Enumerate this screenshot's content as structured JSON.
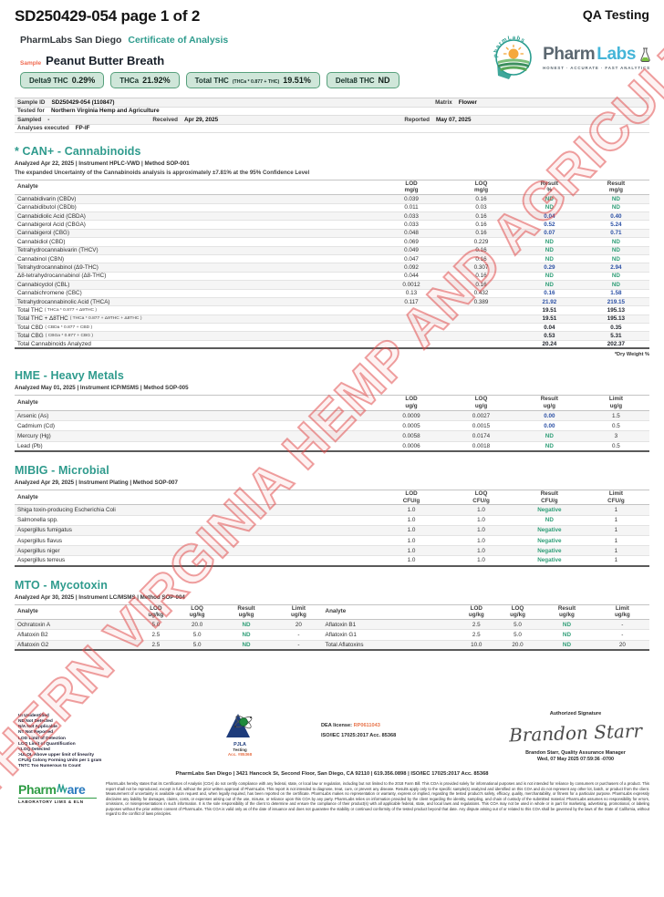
{
  "header": {
    "doc_ref": "SD250429-054 page 1 of 2",
    "qa_label": "QA Testing",
    "lab_name": "PharmLabs San Diego",
    "doc_type": "Certificate of Analysis",
    "sample_label": "Sample",
    "sample_name": "Peanut Butter Breath",
    "badges": [
      {
        "label": "Delta9 THC",
        "formula": "",
        "value": "0.29%"
      },
      {
        "label": "THCa",
        "formula": "",
        "value": "21.92%"
      },
      {
        "label": "Total THC",
        "formula": "(THCa * 0.877 + THC)",
        "value": "19.51%"
      },
      {
        "label": "Delta8 THC",
        "formula": "",
        "value": "ND"
      }
    ],
    "logo": {
      "word_a": "Pharm",
      "word_b": "Labs",
      "tagline": "HONEST · ACCURATE · FAST ANALYTICS",
      "emblem_text": "pharmLabs"
    }
  },
  "sample_info": {
    "sample_id_label": "Sample ID",
    "sample_id": "SD250429-054 (110847)",
    "matrix_label": "Matrix",
    "matrix": "Flower",
    "tested_for_label": "Tested for",
    "tested_for": "Northern Virginia Hemp and Agriculture",
    "sampled_label": "Sampled",
    "sampled": "-",
    "received_label": "Received",
    "received": "Apr 29, 2025",
    "reported_label": "Reported",
    "reported": "May 07, 2025",
    "analyses_label": "Analyses executed",
    "analyses": "FP-IF"
  },
  "sections": {
    "cannabinoids": {
      "title": "* CAN+ - Cannabinoids",
      "meta": "Analyzed Apr 22, 2025  |  Instrument HPLC-VWD | Method SOP-001",
      "note": "The expanded Uncertainty of the Cannabinoids analysis is approximately ±7.81% at the 95% Confidence Level",
      "columns": [
        {
          "label": "Analyte",
          "unit": ""
        },
        {
          "label": "LOD",
          "unit": "mg/g"
        },
        {
          "label": "LOQ",
          "unit": "mg/g"
        },
        {
          "label": "Result",
          "unit": "%"
        },
        {
          "label": "Result",
          "unit": "mg/g"
        }
      ],
      "result_cols": [
        3,
        4
      ],
      "rows": [
        [
          "Cannabidivarin (CBDv)",
          "0.039",
          "0.16",
          "ND",
          "ND"
        ],
        [
          "Cannabidibutol (CBDb)",
          "0.011",
          "0.03",
          "ND",
          "ND"
        ],
        [
          "Cannabidiolic Acid (CBDA)",
          "0.033",
          "0.16",
          "0.04",
          "0.40"
        ],
        [
          "Cannabigerol Acid (CBGA)",
          "0.033",
          "0.16",
          "0.52",
          "5.24"
        ],
        [
          "Cannabigerol (CBG)",
          "0.048",
          "0.16",
          "0.07",
          "0.71"
        ],
        [
          "Cannabidiol (CBD)",
          "0.069",
          "0.229",
          "ND",
          "ND"
        ],
        [
          "Tetrahydrocannabivarin (THCV)",
          "0.049",
          "0.16",
          "ND",
          "ND"
        ],
        [
          "Cannabinol (CBN)",
          "0.047",
          "0.16",
          "ND",
          "ND"
        ],
        [
          "Tetrahydrocannabinol (Δ9-THC)",
          "0.092",
          "0.307",
          "0.29",
          "2.94"
        ],
        [
          "Δ8-tetrahydrocannabinol (Δ8-THC)",
          "0.044",
          "0.16",
          "ND",
          "ND"
        ],
        [
          "Cannabicyclol (CBL)",
          "0.0012",
          "0.16",
          "ND",
          "ND"
        ],
        [
          "Cannabichromene (CBC)",
          "0.13",
          "0.432",
          "0.16",
          "1.58"
        ],
        [
          "Tetrahydrocannabinolic Acid (THCA)",
          "0.117",
          "0.389",
          "21.92",
          "219.15"
        ],
        [
          "Total THC ( THCa * 0.877 + Δ9THC )",
          "",
          "",
          "19.51",
          "195.13"
        ],
        [
          "Total THC + Δ8THC ( THCa * 0.877 + Δ9THC + Δ8THC )",
          "",
          "",
          "19.51",
          "195.13"
        ],
        [
          "Total CBD ( CBDa * 0.877 + CBD )",
          "",
          "",
          "0.04",
          "0.35"
        ],
        [
          "Total CBG ( CBGa * 0.877 + CBG )",
          "",
          "",
          "0.53",
          "5.31"
        ],
        [
          "Total Cannabinoids Analyzed",
          "",
          "",
          "20.24",
          "202.37"
        ]
      ],
      "footnote": "*Dry Weight %"
    },
    "heavy_metals": {
      "title": "HME - Heavy Metals",
      "meta": "Analyzed May 01, 2025  |  Instrument ICP/MSMS | Method SOP-005",
      "columns": [
        {
          "label": "Analyte",
          "unit": ""
        },
        {
          "label": "LOD",
          "unit": "ug/g"
        },
        {
          "label": "LOQ",
          "unit": "ug/g"
        },
        {
          "label": "Result",
          "unit": "ug/g"
        },
        {
          "label": "Limit",
          "unit": "ug/g"
        }
      ],
      "result_cols": [
        3
      ],
      "rows": [
        [
          "Arsenic (As)",
          "0.0009",
          "0.0027",
          "0.00",
          "1.5"
        ],
        [
          "Cadmium (Cd)",
          "0.0005",
          "0.0015",
          "0.00",
          "0.5"
        ],
        [
          "Mercury (Hg)",
          "0.0058",
          "0.0174",
          "ND",
          "3"
        ],
        [
          "Lead (Pb)",
          "0.0006",
          "0.0018",
          "ND",
          "0.5"
        ]
      ]
    },
    "microbial": {
      "title": "MIBIG - Microbial",
      "meta": "Analyzed Apr 29, 2025  |  Instrument Plating | Method SOP-007",
      "columns": [
        {
          "label": "Analyte",
          "unit": ""
        },
        {
          "label": "LOD",
          "unit": "CFU/g"
        },
        {
          "label": "LOQ",
          "unit": "CFU/g"
        },
        {
          "label": "Result",
          "unit": "CFU/g"
        },
        {
          "label": "Limit",
          "unit": "CFU/g"
        }
      ],
      "result_cols": [
        3
      ],
      "rows": [
        [
          "Shiga toxin-producing Escherichia Coli",
          "1.0",
          "1.0",
          "Negative",
          "1"
        ],
        [
          "Salmonella spp.",
          "1.0",
          "1.0",
          "ND",
          "1"
        ],
        [
          "Aspergillus fumigatus",
          "1.0",
          "1.0",
          "Negative",
          "1"
        ],
        [
          "Aspergillus flavus",
          "1.0",
          "1.0",
          "Negative",
          "1"
        ],
        [
          "Aspergillus niger",
          "1.0",
          "1.0",
          "Negative",
          "1"
        ],
        [
          "Aspergillus terreus",
          "1.0",
          "1.0",
          "Negative",
          "1"
        ]
      ]
    },
    "mycotoxin": {
      "title": "MTO - Mycotoxin",
      "meta": "Analyzed Apr 30, 2025  |  Instrument LC/MSMS | Method SOP-004",
      "columns": [
        {
          "label": "Analyte",
          "unit": ""
        },
        {
          "label": "LOD",
          "unit": "ug/kg"
        },
        {
          "label": "LOQ",
          "unit": "ug/kg"
        },
        {
          "label": "Result",
          "unit": "ug/kg"
        },
        {
          "label": "Limit",
          "unit": "ug/kg"
        },
        {
          "label": "Analyte",
          "unit": ""
        },
        {
          "label": "LOD",
          "unit": "ug/kg"
        },
        {
          "label": "LOQ",
          "unit": "ug/kg"
        },
        {
          "label": "Result",
          "unit": "ug/kg"
        },
        {
          "label": "Limit",
          "unit": "ug/kg"
        }
      ],
      "result_cols": [
        3,
        8
      ],
      "rows": [
        [
          "Ochratoxin A",
          "5.0",
          "20.0",
          "ND",
          "20",
          "Aflatoxin B1",
          "2.5",
          "5.0",
          "ND",
          "-"
        ],
        [
          "Aflatoxin B2",
          "2.5",
          "5.0",
          "ND",
          "-",
          "Aflatoxin G1",
          "2.5",
          "5.0",
          "ND",
          "-"
        ],
        [
          "Aflatoxin G2",
          "2.5",
          "5.0",
          "ND",
          "-",
          "Total Aflatoxins",
          "10.0",
          "20.0",
          "ND",
          "20"
        ]
      ]
    }
  },
  "watermark": "NORTHERN VIRGINIA HEMP AND AGRICULTURE",
  "footer": {
    "legend": [
      "UI Unidentified",
      "ND Not Detected",
      "N/A Not Applicable",
      "NT Not Reported",
      "LOD Limit of Detection",
      "LOQ Limit of Quantification",
      "<LOQ Detected",
      ">ULOL Above upper limit of linearity",
      "CFU/g Colony Forming Units per 1 gram",
      "TNTC Too Numerous to Count"
    ],
    "pjla": {
      "name": "PJLA",
      "sub": "Testing",
      "acc": "Acc. #85368"
    },
    "dea_label": "DEA license:",
    "dea_value": "RP0611043",
    "iso_line": "ISO/IEC 17025:2017 Acc. 85368",
    "signature": {
      "label": "Authorized Signature",
      "script": "Brandon Starr",
      "name_line": "Brandon Starr, Quality Assurance Manager",
      "date_line": "Wed, 07 May 2025 07:59:36 -0700"
    },
    "address_line": "PharmLabs San Diego | 3421 Hancock St, Second Floor, San Diego, CA 92110 | 619.356.0898 | ISO/IEC 17025:2017 Acc. 85368",
    "pharmware": {
      "word_a": "Pharm",
      "word_b": "are",
      "sub": "LABORATORY LIMS & ELN"
    },
    "disclaimer": "PharmLabs hereby states that its Certificates of Analysis (COA) do not certify compliance with any federal, state, or local law or regulation, including but not limited to the 2018 Farm Bill. This COA is provided solely for informational purposes and is not intended for reliance by consumers or purchasers of a product. This report shall not be reproduced, except in full, without the prior written approval of PharmLabs. This report is not intended to diagnose, treat, cure, or prevent any disease. Results apply only to the specific sample(s) analyzed and identified on this COA and do not represent any other lot, batch, or product from the client. Measurement of uncertainty is available upon request and, when legally required, has been reported on the certificate. PharmLabs makes no representation or warranty, express or implied, regarding the tested product's safety, efficacy, quality, merchantability, or fitness for a particular purpose. PharmLabs expressly disclaims any liability for damages, claims, costs, or expenses arising out of the use, misuse, or reliance upon this COA by any party. PharmLabs relies on information provided by the client regarding the identity, sampling, and chain of custody of the submitted material. PharmLabs assumes no responsibility for errors, omissions, or misrepresentations in such information. It is the sole responsibility of the client to determine and ensure the compliance of their product(s) with all applicable federal, state, and local laws and regulations. This COA may not be used in whole or in part for marketing, advertising, promotional, or labeling purposes without the prior written consent of PharmLabs. This COA is valid only as of the date of issuance and does not guarantee the stability or continued conformity of the tested product beyond that date. Any dispute arising out of or related to this COA shall be governed by the laws of the State of California, without regard to the conflict of laws principles."
  },
  "colors": {
    "accent_teal": "#2f9b8d",
    "result_blue": "#2b50a5",
    "result_green": "#2f9e77",
    "badge_bg": "#cfe6d9",
    "badge_border": "#57a07c",
    "watermark_red": "#e04848",
    "orange": "#e8734a"
  }
}
